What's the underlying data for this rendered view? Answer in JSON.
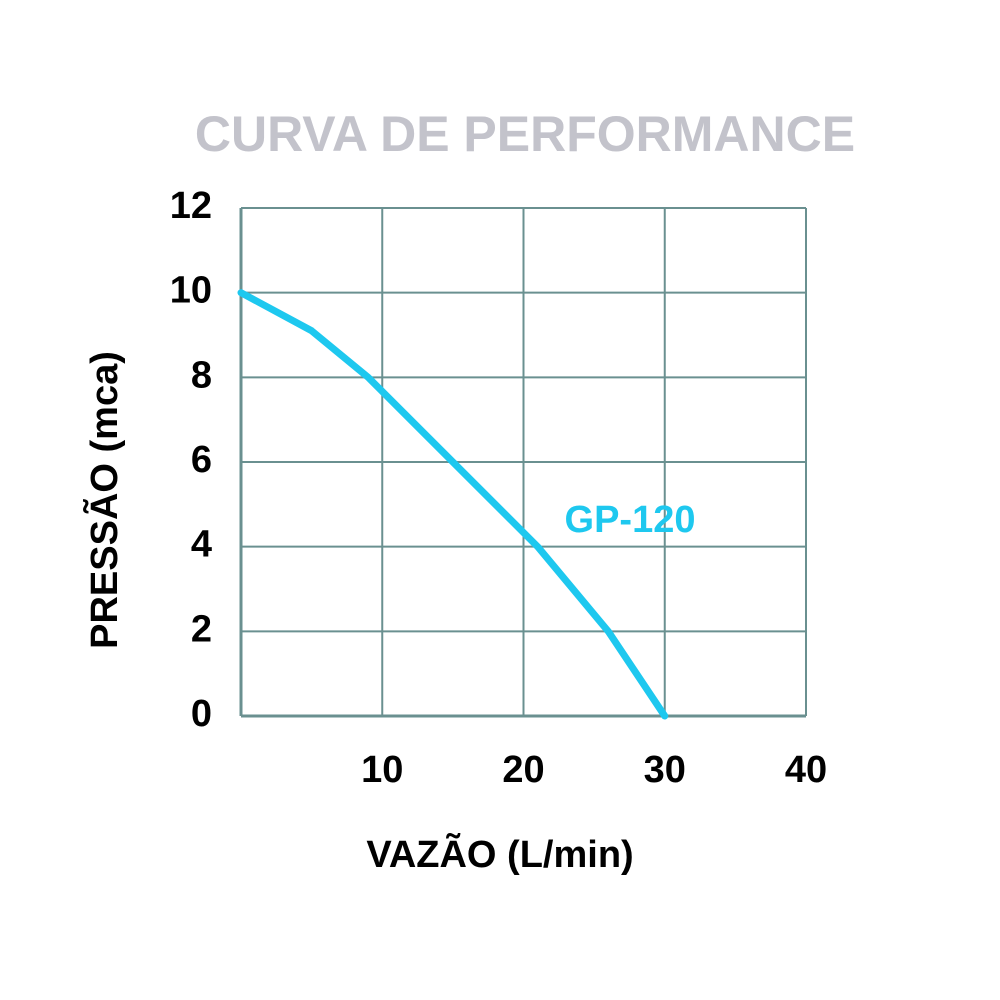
{
  "chart_data": {
    "type": "line",
    "title": "CURVA DE PERFORMANCE",
    "x_label": "VAZÃO (L/min)",
    "y_label": "PRESSÃO (mca)",
    "x": [
      0,
      5,
      9,
      15,
      21,
      26,
      30
    ],
    "series": [
      {
        "name": "GP-120",
        "color": "#1ec8ef",
        "values": [
          10,
          9.1,
          8,
          6,
          4,
          2,
          0
        ]
      }
    ],
    "xlim": [
      0,
      40
    ],
    "xticks": [
      10,
      20,
      30,
      40
    ],
    "ylim": [
      0,
      12
    ],
    "yticks": [
      0,
      2,
      4,
      6,
      8,
      10,
      12
    ],
    "grid": true
  }
}
